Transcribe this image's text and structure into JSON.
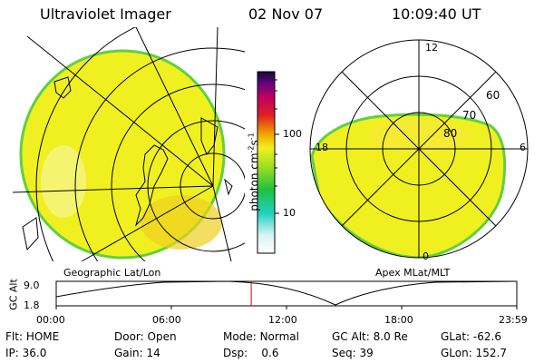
{
  "header": {
    "instrument": "Ultraviolet Imager",
    "date": "02 Nov 07",
    "time": "10:09:40 UT"
  },
  "left_panel": {
    "caption": "Geographic Lat/Lon"
  },
  "right_panel": {
    "caption": "Apex MLat/MLT",
    "mlt_labels": {
      "top": "12",
      "bottom": "0",
      "left": "18",
      "right": "6"
    },
    "mlat_labels": [
      "60",
      "70",
      "80"
    ]
  },
  "colorbar": {
    "title": "photon cm",
    "title_exp": "-2",
    "title_s": "s",
    "title_sexp": "-1",
    "ticks": [
      "100",
      "10"
    ]
  },
  "altitude_plot": {
    "ylabel": "GC Alt",
    "y_ticks": [
      "9.0",
      "1.8"
    ],
    "x_ticks": [
      "00:00",
      "06:00",
      "12:00",
      "18:00",
      "23:59"
    ],
    "marker_time_hours": 10.16
  },
  "info": [
    [
      {
        "k": "Flt:",
        "v": "HOME"
      },
      {
        "k": "Door:",
        "v": "Open"
      },
      {
        "k": "Mode:",
        "v": "Normal"
      },
      {
        "k": "GC Alt:",
        "v": "8.0 Re"
      },
      {
        "k": "GLat:",
        "v": "-62.6"
      }
    ],
    [
      {
        "k": "IP:",
        "v": "36.0"
      },
      {
        "k": "Gain:",
        "v": "14"
      },
      {
        "k": "Dsp:",
        "v": "0.6"
      },
      {
        "k": "Seq:",
        "v": "39"
      },
      {
        "k": "GLon:",
        "v": "152.7"
      }
    ]
  ],
  "colors": {
    "emission": "#f0f020",
    "rim": "#60d040",
    "marker": "#e00000"
  }
}
